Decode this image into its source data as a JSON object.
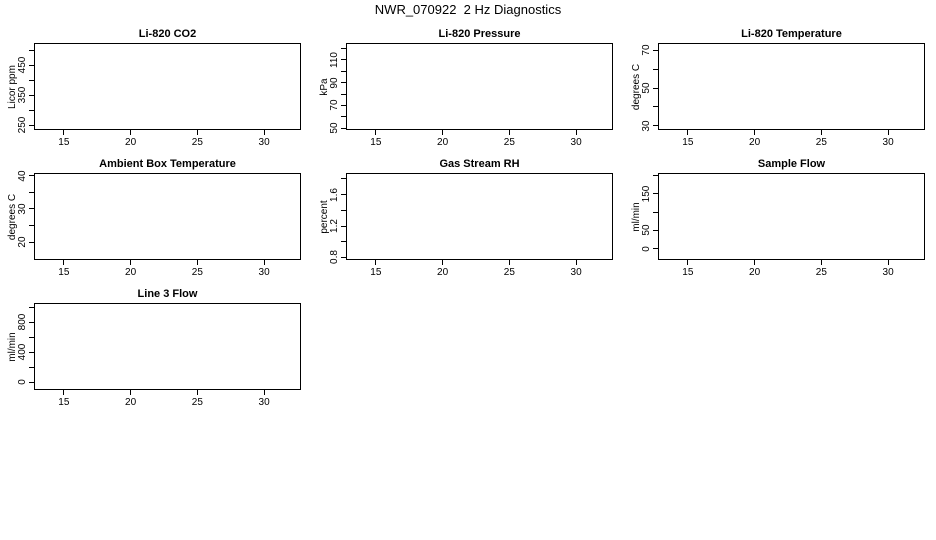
{
  "page_title": "NWR_070922  2 Hz Diagnostics",
  "colors": {
    "foreground": "#000000",
    "background": "#ffffff"
  },
  "chart_data": [
    {
      "type": "line",
      "title": "Li-820 CO2",
      "xlabel": "",
      "ylabel": "Licor ppm",
      "xlim": [
        12.8,
        32.8
      ],
      "ylim": [
        233,
        523
      ],
      "grid": false,
      "xticks": [
        {
          "v": 15,
          "label": "15"
        },
        {
          "v": 20,
          "label": "20"
        },
        {
          "v": 25,
          "label": "25"
        },
        {
          "v": 30,
          "label": "30"
        }
      ],
      "yticks": [
        {
          "v": 250,
          "label": "250"
        },
        {
          "v": 300,
          "label": ""
        },
        {
          "v": 350,
          "label": "350"
        },
        {
          "v": 400,
          "label": ""
        },
        {
          "v": 450,
          "label": "450"
        },
        {
          "v": 500,
          "label": ""
        }
      ],
      "series": []
    },
    {
      "type": "line",
      "title": "Li-820 Pressure",
      "xlabel": "",
      "ylabel": "kPa",
      "xlim": [
        12.8,
        32.8
      ],
      "ylim": [
        48,
        124.3
      ],
      "grid": false,
      "xticks": [
        {
          "v": 15,
          "label": "15"
        },
        {
          "v": 20,
          "label": "20"
        },
        {
          "v": 25,
          "label": "25"
        },
        {
          "v": 30,
          "label": "30"
        }
      ],
      "yticks": [
        {
          "v": 50,
          "label": "50"
        },
        {
          "v": 60,
          "label": ""
        },
        {
          "v": 70,
          "label": "70"
        },
        {
          "v": 80,
          "label": ""
        },
        {
          "v": 90,
          "label": "90"
        },
        {
          "v": 100,
          "label": ""
        },
        {
          "v": 110,
          "label": "110"
        },
        {
          "v": 120,
          "label": ""
        }
      ],
      "series": []
    },
    {
      "type": "line",
      "title": "Li-820 Temperature",
      "xlabel": "",
      "ylabel": "degrees C",
      "xlim": [
        12.8,
        32.8
      ],
      "ylim": [
        27.4,
        73.7
      ],
      "grid": false,
      "xticks": [
        {
          "v": 15,
          "label": "15"
        },
        {
          "v": 20,
          "label": "20"
        },
        {
          "v": 25,
          "label": "25"
        },
        {
          "v": 30,
          "label": "30"
        }
      ],
      "yticks": [
        {
          "v": 30,
          "label": "30"
        },
        {
          "v": 40,
          "label": ""
        },
        {
          "v": 50,
          "label": "50"
        },
        {
          "v": 60,
          "label": ""
        },
        {
          "v": 70,
          "label": "70"
        }
      ],
      "series": []
    },
    {
      "type": "line",
      "title": "Ambient Box Temperature",
      "xlabel": "",
      "ylabel": "degrees C",
      "xlim": [
        12.8,
        32.8
      ],
      "ylim": [
        14.5,
        40.6
      ],
      "grid": false,
      "xticks": [
        {
          "v": 15,
          "label": "15"
        },
        {
          "v": 20,
          "label": "20"
        },
        {
          "v": 25,
          "label": "25"
        },
        {
          "v": 30,
          "label": "30"
        }
      ],
      "yticks": [
        {
          "v": 20,
          "label": "20"
        },
        {
          "v": 25,
          "label": ""
        },
        {
          "v": 30,
          "label": "30"
        },
        {
          "v": 35,
          "label": ""
        },
        {
          "v": 40,
          "label": "40"
        }
      ],
      "series": []
    },
    {
      "type": "line",
      "title": "Gas Stream RH",
      "xlabel": "",
      "ylabel": "percent",
      "xlim": [
        12.8,
        32.8
      ],
      "ylim": [
        0.76,
        1.87
      ],
      "grid": false,
      "xticks": [
        {
          "v": 15,
          "label": "15"
        },
        {
          "v": 20,
          "label": "20"
        },
        {
          "v": 25,
          "label": "25"
        },
        {
          "v": 30,
          "label": "30"
        }
      ],
      "yticks": [
        {
          "v": 0.8,
          "label": "0.8"
        },
        {
          "v": 1.0,
          "label": ""
        },
        {
          "v": 1.2,
          "label": "1.2"
        },
        {
          "v": 1.4,
          "label": ""
        },
        {
          "v": 1.6,
          "label": "1.6"
        },
        {
          "v": 1.8,
          "label": ""
        }
      ],
      "series": []
    },
    {
      "type": "line",
      "title": "Sample Flow",
      "xlabel": "",
      "ylabel": "ml/min",
      "xlim": [
        12.8,
        32.8
      ],
      "ylim": [
        -32,
        205
      ],
      "grid": false,
      "xticks": [
        {
          "v": 15,
          "label": "15"
        },
        {
          "v": 20,
          "label": "20"
        },
        {
          "v": 25,
          "label": "25"
        },
        {
          "v": 30,
          "label": "30"
        }
      ],
      "yticks": [
        {
          "v": 0,
          "label": "0"
        },
        {
          "v": 50,
          "label": "50"
        },
        {
          "v": 100,
          "label": ""
        },
        {
          "v": 150,
          "label": "150"
        },
        {
          "v": 200,
          "label": ""
        }
      ],
      "series": []
    },
    {
      "type": "line",
      "title": "Line 3 Flow",
      "xlabel": "",
      "ylabel": "ml/min",
      "xlim": [
        12.8,
        32.8
      ],
      "ylim": [
        -111,
        1049
      ],
      "grid": false,
      "xticks": [
        {
          "v": 15,
          "label": "15"
        },
        {
          "v": 20,
          "label": "20"
        },
        {
          "v": 25,
          "label": "25"
        },
        {
          "v": 30,
          "label": "30"
        }
      ],
      "yticks": [
        {
          "v": 0,
          "label": "0"
        },
        {
          "v": 200,
          "label": ""
        },
        {
          "v": 400,
          "label": "400"
        },
        {
          "v": 600,
          "label": ""
        },
        {
          "v": 800,
          "label": "800"
        },
        {
          "v": 1000,
          "label": ""
        }
      ],
      "series": []
    }
  ]
}
